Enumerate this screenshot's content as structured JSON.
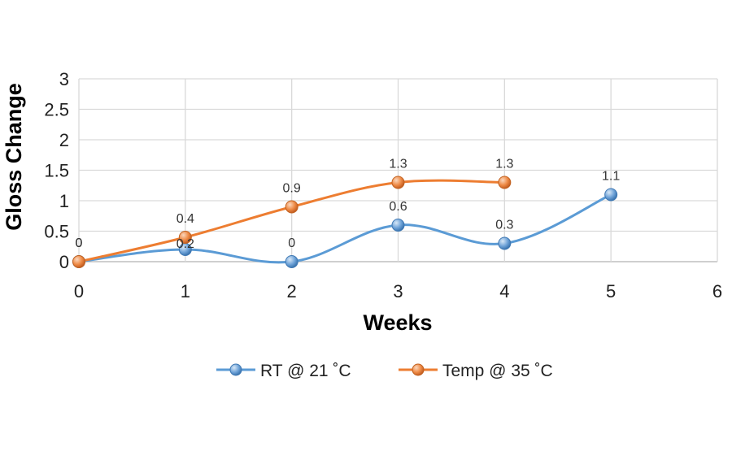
{
  "chart_data": {
    "type": "line",
    "title": "",
    "xlabel": "Weeks",
    "ylabel": "Gloss Change",
    "xlim": [
      0,
      6
    ],
    "ylim": [
      0,
      3
    ],
    "x_ticks": [
      0,
      1,
      2,
      3,
      4,
      5,
      6
    ],
    "y_ticks": [
      0,
      0.5,
      1,
      1.5,
      2,
      2.5,
      3
    ],
    "x_tick_labels": [
      "0",
      "1",
      "2",
      "3",
      "4",
      "5",
      "6"
    ],
    "y_tick_labels": [
      "0",
      "0.5",
      "1",
      "1.5",
      "2",
      "2.5",
      "3"
    ],
    "grid": true,
    "smooth": true,
    "legend_position": "bottom",
    "series": [
      {
        "name": "RT @ 21 ˚C",
        "color": "#5B9BD5",
        "x": [
          0,
          1,
          2,
          3,
          4,
          5
        ],
        "y": [
          0,
          0.2,
          0,
          0.6,
          0.3,
          1.1
        ],
        "labels": [
          "0",
          "0.2",
          "0",
          "0.6",
          "0.3",
          "1.1"
        ]
      },
      {
        "name": "Temp @ 35 ˚C",
        "color": "#ED7D31",
        "x": [
          0,
          1,
          2,
          3,
          4
        ],
        "y": [
          0,
          0.4,
          0.9,
          1.3,
          1.3
        ],
        "labels": [
          "0",
          "0.4",
          "0.9",
          "1.3",
          "1.3"
        ]
      }
    ]
  }
}
